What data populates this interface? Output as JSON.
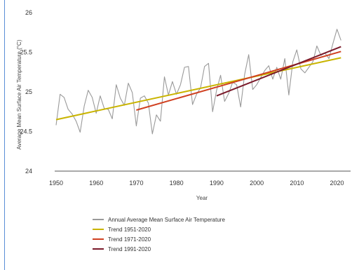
{
  "chart_data": {
    "type": "line",
    "title": "",
    "xlabel": "Year",
    "ylabel": "Average Mean Surface Air Temperature (°C)",
    "xlim": [
      1950,
      2022
    ],
    "ylim": [
      24,
      26
    ],
    "xticks": [
      "1950",
      "1960",
      "1970",
      "1980",
      "1990",
      "2000",
      "2010",
      "2020"
    ],
    "yticks": [
      "24",
      "24.5",
      "25",
      "25.5",
      "26"
    ],
    "grid": false,
    "legend_position": "bottom",
    "series": [
      {
        "name": "Annual Average Mean Surface Air Temperature",
        "color": "#9a9a9a",
        "x": [
          1950,
          1951,
          1952,
          1953,
          1954,
          1955,
          1956,
          1957,
          1958,
          1959,
          1960,
          1961,
          1962,
          1963,
          1964,
          1965,
          1966,
          1967,
          1968,
          1969,
          1970,
          1971,
          1972,
          1973,
          1974,
          1975,
          1976,
          1977,
          1978,
          1979,
          1980,
          1981,
          1982,
          1983,
          1984,
          1985,
          1986,
          1987,
          1988,
          1989,
          1990,
          1991,
          1992,
          1993,
          1994,
          1995,
          1996,
          1997,
          1998,
          1999,
          2000,
          2001,
          2002,
          2003,
          2004,
          2005,
          2006,
          2007,
          2008,
          2009,
          2010,
          2011,
          2012,
          2013,
          2014,
          2015,
          2016,
          2017,
          2018,
          2019,
          2020,
          2021
        ],
        "y": [
          24.58,
          24.97,
          24.93,
          24.78,
          24.72,
          24.63,
          24.49,
          24.82,
          25.02,
          24.93,
          24.73,
          24.95,
          24.79,
          24.78,
          24.66,
          25.09,
          24.92,
          24.83,
          25.11,
          24.99,
          24.57,
          24.92,
          24.95,
          24.86,
          24.47,
          24.71,
          24.63,
          25.19,
          24.96,
          25.13,
          24.97,
          25.09,
          25.31,
          25.32,
          24.84,
          24.97,
          25.05,
          25.32,
          25.36,
          24.75,
          25.02,
          25.21,
          24.88,
          24.98,
          25.12,
          25.09,
          24.81,
          25.22,
          25.47,
          25.03,
          25.09,
          25.18,
          25.27,
          25.33,
          25.16,
          25.31,
          25.16,
          25.42,
          24.96,
          25.38,
          25.53,
          25.29,
          25.24,
          25.31,
          25.38,
          25.58,
          25.46,
          25.49,
          25.42,
          25.61,
          25.79,
          25.65
        ]
      },
      {
        "name": "Trend 1951-2020",
        "color": "#c9b400",
        "x": [
          1950,
          2021
        ],
        "y": [
          24.65,
          25.43
        ]
      },
      {
        "name": "Trend 1971-2020",
        "color": "#d04020",
        "x": [
          1970,
          2021
        ],
        "y": [
          24.77,
          25.51
        ]
      },
      {
        "name": "Trend 1991-2020",
        "color": "#7a1a2a",
        "x": [
          1990,
          2021
        ],
        "y": [
          24.95,
          25.57
        ]
      }
    ]
  }
}
